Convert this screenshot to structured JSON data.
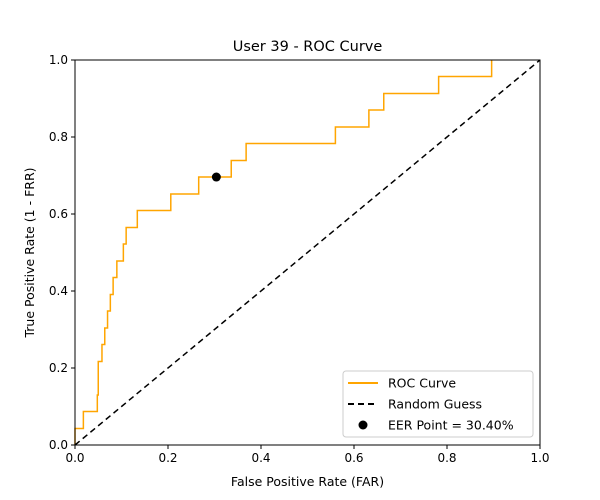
{
  "chart_data": {
    "type": "line",
    "title": "User 39 - ROC Curve",
    "xlabel": "False Positive Rate (FAR)",
    "ylabel": "True Positive Rate (1 - FRR)",
    "xlim": [
      0.0,
      1.0
    ],
    "ylim": [
      0.0,
      1.0
    ],
    "xticks": [
      "0.0",
      "0.2",
      "0.4",
      "0.6",
      "0.8",
      "1.0"
    ],
    "yticks": [
      "0.0",
      "0.2",
      "0.4",
      "0.6",
      "0.8",
      "1.0"
    ],
    "grid": false,
    "legend_position": "lower-right",
    "series": [
      {
        "name": "ROC Curve",
        "color": "#ffa500",
        "style": "step",
        "x": [
          0.0,
          0.0,
          0.018,
          0.018,
          0.048,
          0.048,
          0.05,
          0.05,
          0.052,
          0.052,
          0.058,
          0.058,
          0.064,
          0.064,
          0.07,
          0.07,
          0.076,
          0.076,
          0.082,
          0.082,
          0.09,
          0.09,
          0.104,
          0.104,
          0.11,
          0.11,
          0.118,
          0.118,
          0.134,
          0.134,
          0.206,
          0.206,
          0.266,
          0.266,
          0.336,
          0.336,
          0.368,
          0.368,
          0.56,
          0.56,
          0.632,
          0.632,
          0.664,
          0.664,
          0.782,
          0.782,
          0.896,
          0.896
        ],
        "y": [
          0.0,
          0.043,
          0.043,
          0.087,
          0.087,
          0.13,
          0.13,
          0.217,
          0.217,
          0.217,
          0.217,
          0.261,
          0.261,
          0.304,
          0.304,
          0.348,
          0.348,
          0.391,
          0.391,
          0.435,
          0.435,
          0.478,
          0.478,
          0.522,
          0.522,
          0.565,
          0.565,
          0.565,
          0.565,
          0.609,
          0.609,
          0.652,
          0.652,
          0.696,
          0.696,
          0.739,
          0.739,
          0.783,
          0.783,
          0.826,
          0.826,
          0.87,
          0.87,
          0.913,
          0.913,
          0.957,
          0.957,
          1.0
        ]
      },
      {
        "name": "Random Guess",
        "color": "#000000",
        "style": "dashed",
        "x": [
          0.0,
          1.0
        ],
        "y": [
          0.0,
          1.0
        ]
      }
    ],
    "points": [
      {
        "name": "EER Point = 30.40%",
        "x": 0.304,
        "y": 0.696,
        "color": "#000000"
      }
    ]
  }
}
